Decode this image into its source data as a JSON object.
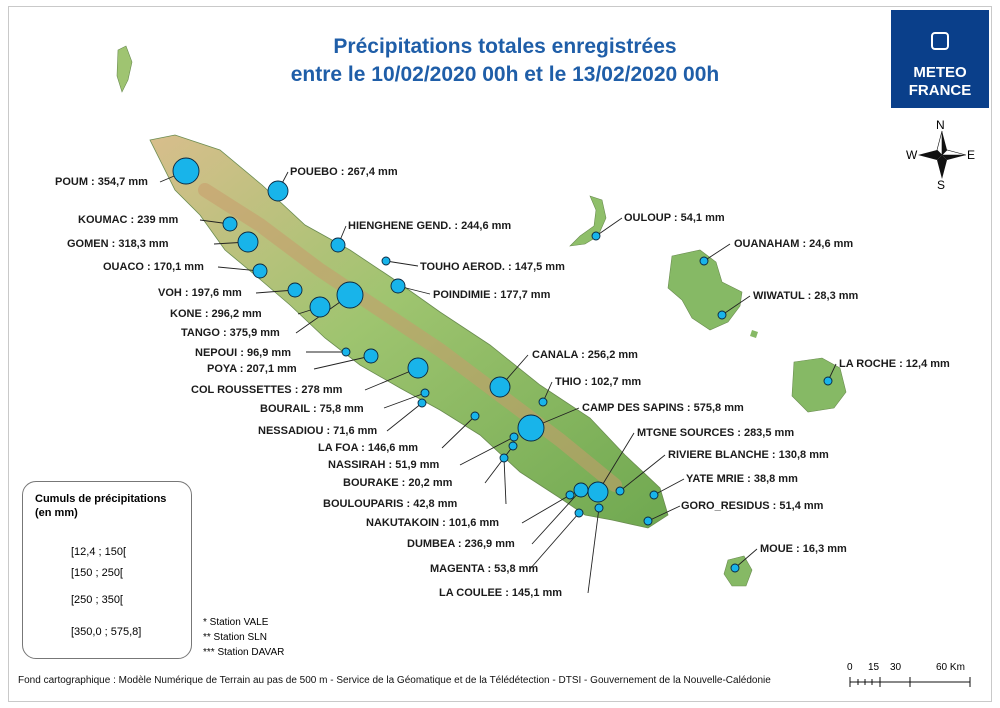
{
  "title": {
    "line1": "Précipitations totales enregistrées",
    "line2": "entre le 10/02/2020 00h et le 13/02/2020 00h"
  },
  "logo": {
    "line1": "METEO",
    "line2": "FRANCE"
  },
  "compass": {
    "n": "N",
    "s": "S",
    "e": "E",
    "w": "W"
  },
  "stations": [
    {
      "id": "poum",
      "label": "POUM : 354,7 mm",
      "value": 354.7
    },
    {
      "id": "pouebo",
      "label": "POUEBO : 267,4 mm",
      "value": 267.4
    },
    {
      "id": "koumac",
      "label": "KOUMAC : 239 mm",
      "value": 239
    },
    {
      "id": "hienghene",
      "label": "HIENGHENE GEND. : 244,6 mm",
      "value": 244.6
    },
    {
      "id": "gomen",
      "label": "GOMEN : 318,3 mm",
      "value": 318.3
    },
    {
      "id": "ouaco",
      "label": "OUACO : 170,1 mm",
      "value": 170.1
    },
    {
      "id": "touho",
      "label": "TOUHO AEROD. : 147,5 mm",
      "value": 147.5
    },
    {
      "id": "voh",
      "label": "VOH : 197,6 mm",
      "value": 197.6
    },
    {
      "id": "poindimie",
      "label": "POINDIMIE : 177,7 mm",
      "value": 177.7
    },
    {
      "id": "kone",
      "label": "KONE : 296,2 mm",
      "value": 296.2
    },
    {
      "id": "tango",
      "label": "TANGO : 375,9 mm",
      "value": 375.9
    },
    {
      "id": "nepoui",
      "label": "NEPOUI : 96,9 mm",
      "value": 96.9
    },
    {
      "id": "poya",
      "label": "POYA : 207,1 mm",
      "value": 207.1
    },
    {
      "id": "canala",
      "label": "CANALA : 256,2 mm",
      "value": 256.2
    },
    {
      "id": "colroussettes",
      "label": "COL ROUSSETTES : 278 mm",
      "value": 278
    },
    {
      "id": "thio",
      "label": "THIO : 102,7 mm",
      "value": 102.7
    },
    {
      "id": "bourail",
      "label": "BOURAIL : 75,8 mm",
      "value": 75.8
    },
    {
      "id": "campdessapins",
      "label": "CAMP DES SAPINS : 575,8 mm",
      "value": 575.8
    },
    {
      "id": "nessadiou",
      "label": "NESSADIOU : 71,6 mm",
      "value": 71.6
    },
    {
      "id": "mtgnesources",
      "label": "MTGNE SOURCES : 283,5 mm",
      "value": 283.5
    },
    {
      "id": "lafoa",
      "label": "LA FOA : 146,6 mm",
      "value": 146.6
    },
    {
      "id": "rivierblanche",
      "label": "RIVIERE BLANCHE : 130,8 mm",
      "value": 130.8
    },
    {
      "id": "nassirah",
      "label": "NASSIRAH : 51,9 mm",
      "value": 51.9
    },
    {
      "id": "yatemrie",
      "label": "YATE MRIE : 38,8 mm",
      "value": 38.8
    },
    {
      "id": "bourake",
      "label": "BOURAKE : 20,2 mm",
      "value": 20.2
    },
    {
      "id": "goro",
      "label": "GORO_RESIDUS : 51,4 mm",
      "value": 51.4
    },
    {
      "id": "boulouparis",
      "label": "BOULOUPARIS : 42,8 mm",
      "value": 42.8
    },
    {
      "id": "nakutakoin",
      "label": "NAKUTAKOIN : 101,6 mm",
      "value": 101.6
    },
    {
      "id": "dumbea",
      "label": "DUMBEA : 236,9 mm",
      "value": 236.9
    },
    {
      "id": "magenta",
      "label": "MAGENTA : 53,8 mm",
      "value": 53.8
    },
    {
      "id": "lacoulee",
      "label": "LA COULEE : 145,1 mm",
      "value": 145.1
    },
    {
      "id": "ouloup",
      "label": "OULOUP : 54,1 mm",
      "value": 54.1
    },
    {
      "id": "ouanaham",
      "label": "OUANAHAM : 24,6 mm",
      "value": 24.6
    },
    {
      "id": "wiwatul",
      "label": "WIWATUL : 28,3 mm",
      "value": 28.3
    },
    {
      "id": "laroche",
      "label": "LA ROCHE : 12,4 mm",
      "value": 12.4
    },
    {
      "id": "moue",
      "label": "MOUE : 16,3 mm",
      "value": 16.3
    }
  ],
  "legend": {
    "title": "Cumuls de précipitations (en mm)",
    "classes": [
      "[12,4 ; 150[",
      "[150 ; 250[",
      "[250 ; 350[",
      "[350,0 ; 575,8]"
    ]
  },
  "notes": [
    "*    Station VALE",
    "**   Station SLN",
    "***  Station DAVAR"
  ],
  "source": "Fond cartographique : Modèle Numérique de Terrain au pas de 500 m - Service de la Géomatique et de la Télédétection - DTSI - Gouvernement de la Nouvelle-Calédonie",
  "scale": {
    "ticks": [
      "0",
      "15",
      "30",
      "60 Km"
    ]
  },
  "colors": {
    "title": "#1f5ea8",
    "symbol": "#18b4ea",
    "logo": "#0a3f8a",
    "land": "#8fbf6a",
    "relief": "#d9b48a"
  }
}
